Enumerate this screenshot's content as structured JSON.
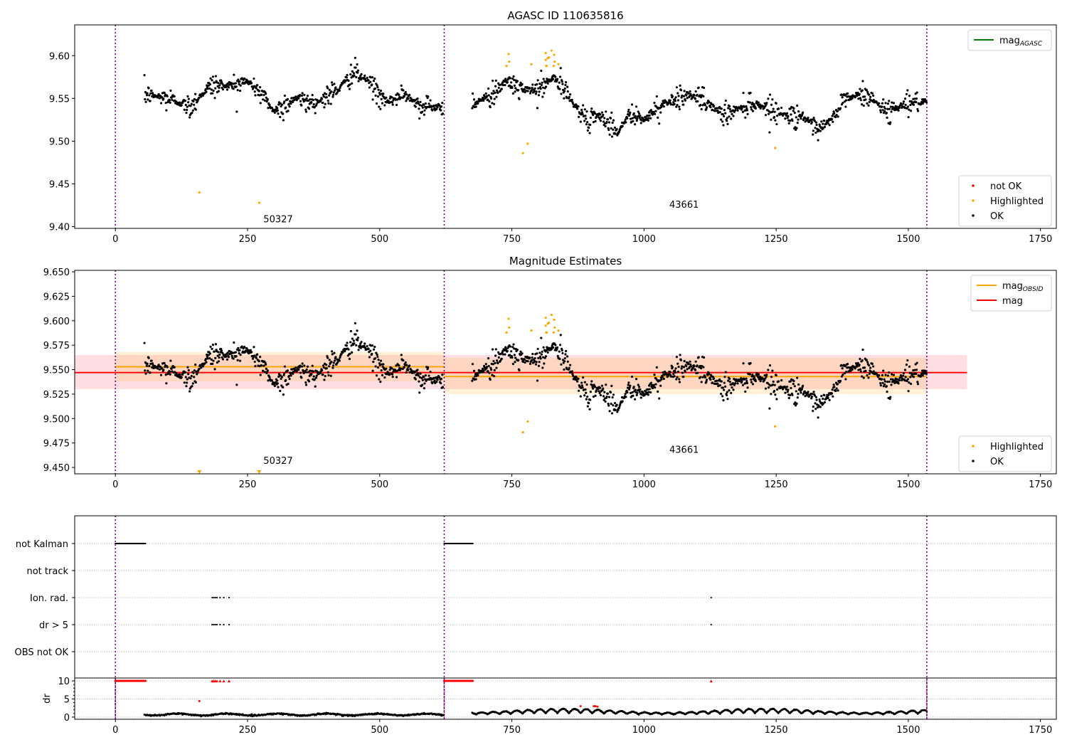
{
  "chart_data": [
    {
      "type": "scatter",
      "title": "AGASC ID 110635816",
      "xlim": [
        -77,
        1780
      ],
      "ylim": [
        9.398,
        9.636
      ],
      "xticks": [
        0,
        250,
        500,
        750,
        1000,
        1250,
        1500,
        1750
      ],
      "yticks": [
        "9.40",
        "9.45",
        "9.50",
        "9.55",
        "9.60"
      ],
      "obs_boundaries": [
        0,
        622,
        1535
      ],
      "annotations": [
        {
          "text": "50327",
          "x": 280,
          "y": 9.405
        },
        {
          "text": "43661",
          "x": 1048,
          "y": 9.422
        }
      ],
      "legend_upper": [
        {
          "label": "mag",
          "sub": "AGASC",
          "color": "#008000",
          "kind": "line"
        }
      ],
      "legend_lower": [
        {
          "label": "not OK",
          "color": "#ff0000",
          "kind": "point"
        },
        {
          "label": "Highlighted",
          "color": "#ffa500",
          "kind": "point"
        },
        {
          "label": "OK",
          "color": "#000000",
          "kind": "point"
        }
      ],
      "series_ok_trend": [
        [
          [
            55,
            9.555
          ],
          [
            100,
            9.55
          ],
          [
            140,
            9.54
          ],
          [
            180,
            9.565
          ],
          [
            220,
            9.565
          ],
          [
            250,
            9.57
          ],
          [
            270,
            9.56
          ],
          [
            300,
            9.535
          ],
          [
            340,
            9.55
          ],
          [
            380,
            9.545
          ],
          [
            420,
            9.56
          ],
          [
            450,
            9.58
          ],
          [
            480,
            9.57
          ],
          [
            510,
            9.545
          ],
          [
            550,
            9.555
          ],
          [
            580,
            9.54
          ],
          [
            620,
            9.54
          ]
        ],
        [
          [
            675,
            9.545
          ],
          [
            700,
            9.55
          ],
          [
            740,
            9.57
          ],
          [
            770,
            9.56
          ],
          [
            800,
            9.56
          ],
          [
            830,
            9.575
          ],
          [
            860,
            9.55
          ],
          [
            890,
            9.525
          ],
          [
            920,
            9.53
          ],
          [
            950,
            9.51
          ],
          [
            970,
            9.53
          ],
          [
            1000,
            9.525
          ],
          [
            1040,
            9.545
          ],
          [
            1080,
            9.555
          ],
          [
            1120,
            9.545
          ],
          [
            1150,
            9.53
          ],
          [
            1200,
            9.545
          ],
          [
            1230,
            9.54
          ],
          [
            1270,
            9.53
          ],
          [
            1300,
            9.53
          ],
          [
            1330,
            9.51
          ],
          [
            1360,
            9.53
          ],
          [
            1380,
            9.55
          ],
          [
            1420,
            9.555
          ],
          [
            1460,
            9.535
          ],
          [
            1500,
            9.545
          ],
          [
            1535,
            9.545
          ]
        ]
      ],
      "ok_scatter_sd": 0.008,
      "highlighted": [
        [
          159,
          9.44
        ],
        [
          272,
          9.428
        ],
        [
          744,
          9.602
        ],
        [
          745,
          9.593
        ],
        [
          740,
          9.588
        ],
        [
          787,
          9.59
        ],
        [
          771,
          9.486
        ],
        [
          780,
          9.497
        ],
        [
          814,
          9.603
        ],
        [
          825,
          9.606
        ],
        [
          830,
          9.601
        ],
        [
          820,
          9.598
        ],
        [
          818,
          9.597
        ],
        [
          814,
          9.595
        ],
        [
          831,
          9.593
        ],
        [
          816,
          9.588
        ],
        [
          815,
          9.588
        ],
        [
          838,
          9.59
        ],
        [
          829,
          9.588
        ],
        [
          1248,
          9.492
        ]
      ]
    },
    {
      "type": "scatter",
      "title": "Magnitude Estimates",
      "xlim": [
        -77,
        1780
      ],
      "ylim": [
        9.4435,
        9.6515
      ],
      "yticks": [
        "9.450",
        "9.475",
        "9.500",
        "9.525",
        "9.550",
        "9.575",
        "9.600",
        "9.625",
        "9.650"
      ],
      "annotations": [
        {
          "text": "50327",
          "x": 280,
          "y": 9.4536
        },
        {
          "text": "43661",
          "x": 1048,
          "y": 9.465
        }
      ],
      "mag": {
        "value": 9.547,
        "low": 9.53,
        "high": 9.565,
        "x_range": [
          -77,
          1611
        ],
        "color": "#ff0000"
      },
      "mag_obsid": [
        {
          "x_range": [
            0,
            622
          ],
          "value": 9.553,
          "low": 9.538,
          "high": 9.568
        },
        {
          "x_range": [
            622,
            1535
          ],
          "value": 9.543,
          "low": 9.525,
          "high": 9.562
        }
      ],
      "clipped_highlighted_x": [
        159,
        272
      ],
      "legend_upper": [
        {
          "label": "mag",
          "sub": "OBSID",
          "color": "#ffa500",
          "kind": "line"
        },
        {
          "label": "mag",
          "sub": "",
          "color": "#ff0000",
          "kind": "line"
        }
      ],
      "legend_lower": [
        {
          "label": "Highlighted",
          "color": "#ffa500",
          "kind": "point"
        },
        {
          "label": "OK",
          "color": "#000000",
          "kind": "point"
        }
      ]
    },
    {
      "type": "scatter",
      "categories": [
        "not Kalman",
        "not track",
        "Ion. rad.",
        "dr > 5",
        "OBS not OK"
      ],
      "flags": {
        "not Kalman": [
          [
            0,
            57
          ],
          [
            622,
            677
          ]
        ],
        "not track": [],
        "Ion. rad.": [
          183,
          186,
          189,
          192,
          198,
          205,
          215,
          1127
        ],
        "dr > 5": [
          183,
          186,
          189,
          192,
          198,
          205,
          215,
          1127
        ],
        "OBS not OK": []
      }
    },
    {
      "type": "scatter",
      "ylabel": "dr",
      "ylim": [
        -0.6,
        10.8
      ],
      "yticks": [
        "0",
        "5",
        "10"
      ],
      "clipped_red_x": [
        [
          0,
          57
        ],
        [
          622,
          677
        ],
        [
          183,
          186,
          189,
          192,
          198,
          205,
          215,
          1127
        ]
      ],
      "red_points": [
        [
          159,
          4.4
        ],
        [
          880,
          3.0
        ],
        [
          905,
          3.0
        ],
        [
          908,
          3.0
        ],
        [
          912,
          2.9
        ]
      ],
      "seg1_dr_mean": 0.7,
      "seg2_dr_range": [
        0.5,
        2.5
      ]
    }
  ]
}
